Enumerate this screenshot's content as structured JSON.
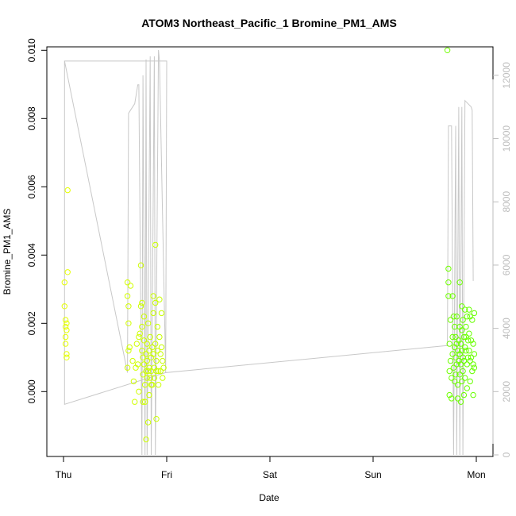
{
  "chart_data": {
    "type": "scatter",
    "title": "ATOM3 Northeast_Pacific_1 Bromine_PM1_AMS",
    "xlabel": "Date",
    "ylabel": "Bromine_PM1_AMS",
    "x_tick_labels": [
      "Thu",
      "Fri",
      "Sat",
      "Sun",
      "Mon"
    ],
    "x_range_days": [
      0,
      4
    ],
    "ylim": [
      -0.0019,
      0.0101
    ],
    "y_ticks": [
      0.0,
      0.002,
      0.004,
      0.006,
      0.008,
      0.01
    ],
    "y_tick_labels": [
      "0.000",
      "0.002",
      "0.004",
      "0.006",
      "0.008",
      "0.010"
    ],
    "y2lim": [
      -50,
      12900
    ],
    "y2_ticks": [
      0,
      2000,
      4000,
      6000,
      8000,
      10000,
      12000
    ],
    "y2_tick_labels": [
      "0",
      "2000",
      "4000",
      "6000",
      "8000",
      "10000",
      "12000"
    ],
    "grid": false,
    "legend": "none",
    "colors": {
      "points_start": "#e6ff00",
      "points_end": "#66ff00",
      "line": "#c8c8c8",
      "right_axis": "#bdbdbd"
    },
    "series": [
      {
        "type": "scatter",
        "axis": "left",
        "points": [
          [
            0.01,
            0.0032
          ],
          [
            0.01,
            0.0025
          ],
          [
            0.02,
            0.0021
          ],
          [
            0.02,
            0.0019
          ],
          [
            0.02,
            0.0016
          ],
          [
            0.03,
            0.0011
          ],
          [
            0.03,
            0.001
          ],
          [
            0.02,
            0.0014
          ],
          [
            0.04,
            0.0059
          ],
          [
            0.04,
            0.0035
          ],
          [
            0.03,
            0.002
          ],
          [
            0.03,
            0.0018
          ],
          [
            0.62,
            0.0032
          ],
          [
            0.62,
            0.0028
          ],
          [
            0.63,
            0.0025
          ],
          [
            0.63,
            0.002
          ],
          [
            0.63,
            0.0012
          ],
          [
            0.64,
            0.0013
          ],
          [
            0.62,
            0.0007
          ],
          [
            0.65,
            0.0031
          ],
          [
            0.67,
            0.0009
          ],
          [
            0.68,
            0.0003
          ],
          [
            0.69,
            -0.0003
          ],
          [
            0.7,
            0.0007
          ],
          [
            0.71,
            0.0014
          ],
          [
            0.72,
            0.0008
          ],
          [
            0.73,
            0.0016
          ],
          [
            0.73,
            0.0
          ],
          [
            0.74,
            0.0017
          ],
          [
            0.75,
            0.0037
          ],
          [
            0.75,
            0.0025
          ],
          [
            0.76,
            0.0019
          ],
          [
            0.76,
            0.0012
          ],
          [
            0.77,
            0.001
          ],
          [
            0.77,
            0.0005
          ],
          [
            0.77,
            -0.0003
          ],
          [
            0.78,
            0.0022
          ],
          [
            0.78,
            0.0015
          ],
          [
            0.78,
            0.0008
          ],
          [
            0.79,
            -0.0003
          ],
          [
            0.79,
            0.0002
          ],
          [
            0.8,
            0.0011
          ],
          [
            0.8,
            0.0006
          ],
          [
            0.8,
            -0.0014
          ],
          [
            0.81,
            0.0014
          ],
          [
            0.81,
            0.0009
          ],
          [
            0.81,
            0.0004
          ],
          [
            0.82,
            0.002
          ],
          [
            0.82,
            0.0006
          ],
          [
            0.82,
            -0.0009
          ],
          [
            0.83,
            0.0012
          ],
          [
            0.83,
            0.0007
          ],
          [
            0.84,
            0.0016
          ],
          [
            0.84,
            0.0004
          ],
          [
            0.85,
            0.001
          ],
          [
            0.85,
            0.0006
          ],
          [
            0.86,
            0.0013
          ],
          [
            0.86,
            0.0002
          ],
          [
            0.87,
            0.0028
          ],
          [
            0.87,
            0.0023
          ],
          [
            0.87,
            0.0011
          ],
          [
            0.88,
            0.0007
          ],
          [
            0.88,
            0.0004
          ],
          [
            0.89,
            0.0043
          ],
          [
            0.89,
            0.0026
          ],
          [
            0.89,
            0.0014
          ],
          [
            0.9,
            0.0009
          ],
          [
            0.9,
            0.0006
          ],
          [
            0.9,
            -0.0008
          ],
          [
            0.91,
            0.0019
          ],
          [
            0.91,
            0.0012
          ],
          [
            0.92,
            0.0006
          ],
          [
            0.92,
            0.0002
          ],
          [
            0.93,
            0.0027
          ],
          [
            0.93,
            0.0016
          ],
          [
            0.94,
            0.0011
          ],
          [
            0.94,
            0.0006
          ],
          [
            0.95,
            0.0023
          ],
          [
            0.95,
            0.0013
          ],
          [
            0.96,
            0.0009
          ],
          [
            0.96,
            0.0004
          ],
          [
            0.97,
            0.0007
          ],
          [
            0.83,
            -0.0001
          ],
          [
            0.85,
            0.0002
          ],
          [
            0.76,
            0.0026
          ],
          [
            3.72,
            0.01
          ],
          [
            3.73,
            0.0036
          ],
          [
            3.73,
            0.0032
          ],
          [
            3.73,
            0.0028
          ],
          [
            3.74,
            0.0014
          ],
          [
            3.74,
            0.0006
          ],
          [
            3.74,
            -0.0001
          ],
          [
            3.75,
            0.0021
          ],
          [
            3.75,
            0.0009
          ],
          [
            3.76,
            0.0004
          ],
          [
            3.76,
            -0.0002
          ],
          [
            3.77,
            0.0016
          ],
          [
            3.77,
            0.0011
          ],
          [
            3.78,
            0.0022
          ],
          [
            3.78,
            0.0007
          ],
          [
            3.79,
            0.0019
          ],
          [
            3.79,
            0.0013
          ],
          [
            3.79,
            0.0003
          ],
          [
            3.8,
            0.0016
          ],
          [
            3.8,
            0.001
          ],
          [
            3.8,
            0.0005
          ],
          [
            3.81,
            0.0022
          ],
          [
            3.81,
            0.0014
          ],
          [
            3.81,
            0.0008
          ],
          [
            3.82,
            0.0012
          ],
          [
            3.82,
            0.0002
          ],
          [
            3.82,
            -0.0002
          ],
          [
            3.83,
            0.0015
          ],
          [
            3.83,
            0.0009
          ],
          [
            3.84,
            0.0032
          ],
          [
            3.84,
            0.0019
          ],
          [
            3.84,
            0.0011
          ],
          [
            3.84,
            0.0005
          ],
          [
            3.85,
            0.0014
          ],
          [
            3.85,
            0.0008
          ],
          [
            3.85,
            -0.0003
          ],
          [
            3.86,
            0.0018
          ],
          [
            3.86,
            0.0012
          ],
          [
            3.86,
            0.0003
          ],
          [
            3.87,
            0.0021
          ],
          [
            3.87,
            0.001
          ],
          [
            3.87,
            0.0006
          ],
          [
            3.88,
            0.0016
          ],
          [
            3.88,
            0.0009
          ],
          [
            3.88,
            -0.0001
          ],
          [
            3.89,
            0.0024
          ],
          [
            3.89,
            0.0013
          ],
          [
            3.89,
            0.0004
          ],
          [
            3.9,
            0.0019
          ],
          [
            3.9,
            0.0012
          ],
          [
            3.91,
            0.0022
          ],
          [
            3.91,
            0.0008
          ],
          [
            3.91,
            0.0001
          ],
          [
            3.92,
            0.0015
          ],
          [
            3.92,
            0.001
          ],
          [
            3.93,
            0.0024
          ],
          [
            3.93,
            0.0017
          ],
          [
            3.93,
            0.0012
          ],
          [
            3.94,
            0.0022
          ],
          [
            3.94,
            0.0009
          ],
          [
            3.94,
            0.0003
          ],
          [
            3.95,
            0.0015
          ],
          [
            3.95,
            0.001
          ],
          [
            3.96,
            0.0021
          ],
          [
            3.96,
            0.0006
          ],
          [
            3.97,
            0.0014
          ],
          [
            3.97,
            0.0008
          ],
          [
            3.97,
            -0.0001
          ],
          [
            3.98,
            0.0023
          ],
          [
            3.98,
            0.0011
          ],
          [
            3.98,
            0.0007
          ],
          [
            3.77,
            0.0028
          ],
          [
            3.86,
            0.0025
          ],
          [
            3.9,
            0.0016
          ]
        ]
      },
      {
        "type": "line",
        "axis": "right",
        "points": [
          [
            0.01,
            12450
          ],
          [
            0.01,
            1600
          ],
          [
            0.99,
            2600
          ],
          [
            1.0,
            12450
          ],
          [
            0.01,
            12450
          ],
          [
            0.62,
            2600
          ],
          [
            0.63,
            10800
          ],
          [
            0.69,
            11100
          ],
          [
            0.72,
            11700
          ],
          [
            0.73,
            11700
          ],
          [
            0.76,
            0
          ],
          [
            0.77,
            12000
          ],
          [
            0.79,
            0
          ],
          [
            0.8,
            12500
          ],
          [
            0.81,
            0
          ],
          [
            0.84,
            12600
          ],
          [
            0.85,
            0
          ],
          [
            0.88,
            12600
          ],
          [
            0.89,
            0
          ],
          [
            0.92,
            12800
          ],
          [
            0.93,
            12450
          ],
          [
            0.99,
            2600
          ],
          [
            3.7,
            3450
          ],
          [
            3.72,
            3450
          ],
          [
            3.73,
            10400
          ],
          [
            3.76,
            10400
          ],
          [
            3.78,
            0
          ],
          [
            3.8,
            10400
          ],
          [
            3.81,
            0
          ],
          [
            3.83,
            11000
          ],
          [
            3.84,
            0
          ],
          [
            3.86,
            11000
          ],
          [
            3.87,
            0
          ],
          [
            3.89,
            11200
          ],
          [
            3.95,
            11000
          ],
          [
            3.96,
            10900
          ],
          [
            3.97,
            5500
          ]
        ]
      }
    ]
  }
}
